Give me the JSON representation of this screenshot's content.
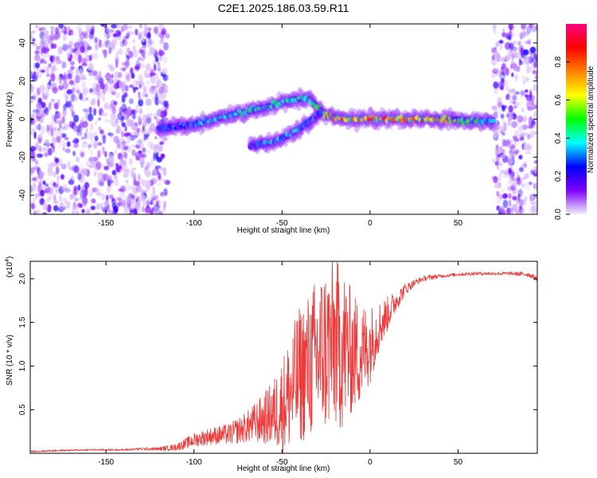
{
  "figure_title": "C2E1.2025.186.03.59.R11",
  "colors": {
    "snr_line": "#ee3a3a",
    "colormap": [
      "#f0f0f8",
      "#7f00ff",
      "#0000ff",
      "#00ffff",
      "#00ff00",
      "#ffff00",
      "#ff8000",
      "#ff0000",
      "#ff0080"
    ]
  },
  "chart_data": [
    {
      "type": "heatmap",
      "title": "",
      "xlabel": "Height of straight line (km)",
      "ylabel": "Frequency (Hz)",
      "xlim": [
        -193,
        95
      ],
      "ylim": [
        -50,
        50
      ],
      "x_ticks": [
        "-150",
        "-100",
        "-50",
        "0",
        "50"
      ],
      "x_tick_values": [
        -150,
        -100,
        -50,
        0,
        50
      ],
      "y_ticks": [
        "-40",
        "-20",
        "0",
        "20",
        "40"
      ],
      "y_tick_values": [
        -40,
        -20,
        0,
        20,
        40
      ],
      "colorbar": {
        "label": "Normalized spectral amplitude",
        "range": [
          0,
          1
        ],
        "ticks": [
          "0.0",
          "0.2",
          "0.4",
          "0.6",
          "0.8"
        ],
        "tick_values": [
          0.0,
          0.2,
          0.4,
          0.6,
          0.8
        ]
      },
      "features": {
        "noise_regions": [
          [
            -193,
            -115
          ],
          [
            70,
            95
          ]
        ],
        "main_track": {
          "x": [
            -120,
            -100,
            -80,
            -60,
            -45,
            -35,
            -25,
            -15,
            0,
            20,
            40,
            60,
            70
          ],
          "y": [
            -5,
            -3,
            2,
            6,
            10,
            11,
            2,
            0,
            0,
            0,
            0,
            -1,
            -1
          ],
          "peak_amplitude": [
            0.3,
            0.4,
            0.45,
            0.5,
            0.5,
            0.45,
            0.7,
            0.9,
            0.95,
            0.92,
            0.8,
            0.55,
            0.4
          ]
        },
        "secondary_track": {
          "x": [
            -68,
            -55,
            -45,
            -35,
            -28
          ],
          "y": [
            -14,
            -12,
            -8,
            -2,
            3
          ],
          "peak_amplitude": [
            0.3,
            0.4,
            0.45,
            0.4,
            0.35
          ]
        }
      }
    },
    {
      "type": "line",
      "title": "",
      "xlabel": "Height of straight line (km)",
      "ylabel": "SNR (10 * v/v)",
      "y_multiplier": "(x10",
      "y_multiplier_exp": "4",
      "y_multiplier_close": ")",
      "xlim": [
        -193,
        95
      ],
      "ylim": [
        0,
        2.2
      ],
      "x_ticks": [
        "-150",
        "-100",
        "-50",
        "0",
        "50"
      ],
      "x_tick_values": [
        -150,
        -100,
        -50,
        0,
        50
      ],
      "y_ticks": [
        "0.5",
        "1.0",
        "1.5",
        "2.0"
      ],
      "y_tick_values": [
        0.5,
        1.0,
        1.5,
        2.0
      ],
      "series": [
        {
          "x": [
            -193,
            -180,
            -160,
            -140,
            -130,
            -120,
            -110,
            -100,
            -90,
            -80,
            -70,
            -60,
            -55,
            -50,
            -45,
            -40,
            -35,
            -30,
            -25,
            -20,
            -15,
            -10,
            -5,
            0,
            5,
            10,
            15,
            20,
            25,
            30,
            35,
            40,
            50,
            60,
            70,
            80,
            90,
            95
          ],
          "y": [
            0.02,
            0.03,
            0.04,
            0.04,
            0.05,
            0.05,
            0.07,
            0.15,
            0.2,
            0.22,
            0.3,
            0.4,
            0.45,
            0.55,
            0.7,
            0.9,
            1.0,
            1.1,
            1.2,
            1.25,
            1.2,
            1.15,
            1.15,
            1.25,
            1.45,
            1.6,
            1.75,
            1.88,
            1.95,
            2.0,
            2.02,
            2.03,
            2.05,
            2.06,
            2.06,
            2.06,
            2.05,
            2.0
          ],
          "spread": [
            0.01,
            0.01,
            0.01,
            0.01,
            0.015,
            0.02,
            0.04,
            0.08,
            0.1,
            0.12,
            0.18,
            0.3,
            0.4,
            0.55,
            0.7,
            0.8,
            0.85,
            0.95,
            1.0,
            1.0,
            0.95,
            0.7,
            0.6,
            0.45,
            0.3,
            0.2,
            0.12,
            0.07,
            0.04,
            0.03,
            0.03,
            0.02,
            0.02,
            0.02,
            0.02,
            0.02,
            0.03,
            0.03
          ]
        }
      ]
    }
  ]
}
